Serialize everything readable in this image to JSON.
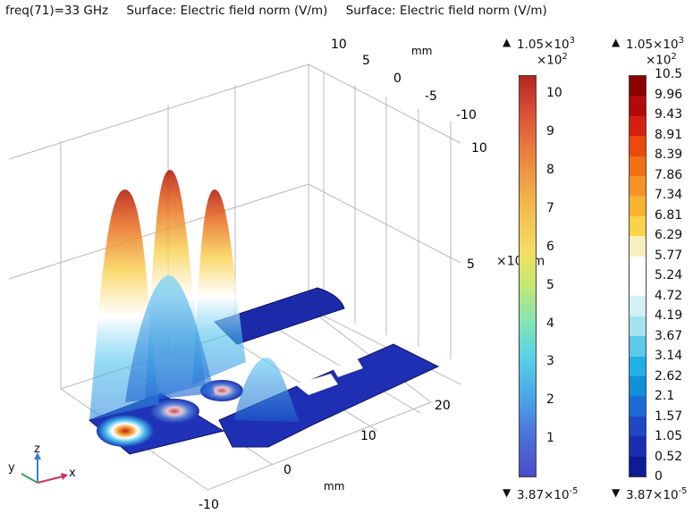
{
  "header": {
    "freq_label": "freq(71)=33 GHz",
    "surface_title_1": "Surface: Electric field norm (V/m)",
    "surface_title_2": "Surface: Electric field norm (V/m)"
  },
  "axes_3d": {
    "x_ticks": [
      "-10",
      "0",
      "10",
      "20"
    ],
    "y_ticks_top": [
      "10",
      "5",
      "0",
      "-5",
      "-10"
    ],
    "z_ticks": [
      "10",
      "5"
    ],
    "x_unit": "mm",
    "y_unit": "mm",
    "overlap_text": "×10",
    "overlap_text_2": "/m"
  },
  "triad": {
    "x": "x",
    "y": "y",
    "z": "z"
  },
  "colorbar_1": {
    "max_label": "1.05×10",
    "max_exp": "3",
    "scale_label": "×10",
    "scale_exp": "2",
    "min_label": "3.87×10",
    "min_exp": "-5",
    "ticks": [
      "10",
      "9",
      "8",
      "7",
      "6",
      "5",
      "4",
      "3",
      "2",
      "1"
    ]
  },
  "colorbar_2": {
    "max_label": "1.05×10",
    "max_exp": "3",
    "scale_label": "×10",
    "scale_exp": "2",
    "min_label": "3.87×10",
    "min_exp": "-5",
    "levels": [
      "10.5",
      "9.96",
      "9.43",
      "8.91",
      "8.39",
      "7.86",
      "7.34",
      "6.81",
      "6.29",
      "5.77",
      "5.24",
      "4.72",
      "4.19",
      "3.67",
      "3.14",
      "2.62",
      "2.1",
      "1.57",
      "1.05",
      "0.52",
      "0"
    ],
    "level_colors": [
      "#8b0000",
      "#b20a0a",
      "#d61f10",
      "#ea4a0c",
      "#f26f12",
      "#f79226",
      "#fbb32f",
      "#f9d34a",
      "#f8eec0",
      "#ffffff",
      "#ffffff",
      "#d2f1f6",
      "#a3e2ee",
      "#5cc8ea",
      "#22aee6",
      "#1090d8",
      "#1b6bd6",
      "#2048c6",
      "#1a2eb2",
      "#0e1a96",
      "#0a0f80"
    ]
  }
}
